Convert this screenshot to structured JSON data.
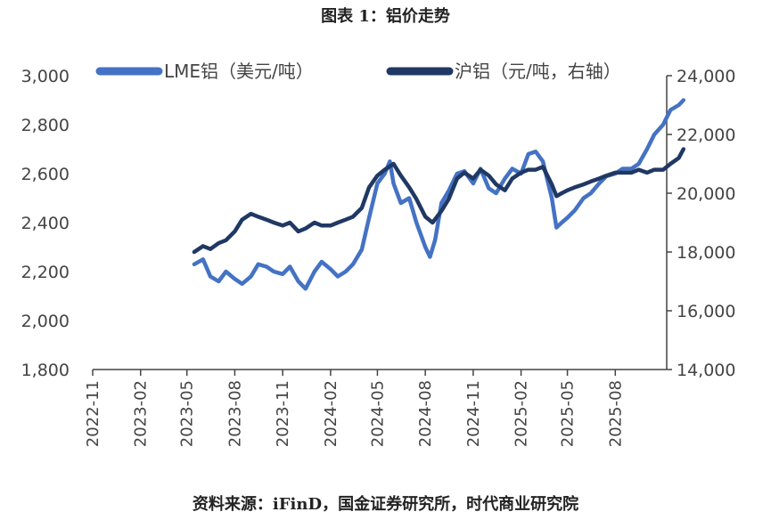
{
  "title": "图表 1：铝价走势",
  "source": "资料来源：iFinD，国金证券研究所，时代商业研究院",
  "colors": {
    "lme": "#4472C4",
    "shfe": "#203864",
    "axis": "#444444"
  },
  "chart_data": {
    "type": "line",
    "x_ticks": [
      "2022-11",
      "2023-02",
      "2023-05",
      "2023-08",
      "2023-11",
      "2024-02",
      "2024-05",
      "2024-08",
      "2024-11",
      "2025-02",
      "2025-05",
      "2025-08"
    ],
    "y_left": {
      "range": [
        1800,
        3000
      ],
      "ticks": [
        "1,800",
        "2,000",
        "2,200",
        "2,400",
        "2,600",
        "2,800",
        "3,000"
      ]
    },
    "y_right": {
      "range": [
        14000,
        24000
      ],
      "ticks": [
        "14,000",
        "16,000",
        "18,000",
        "20,000",
        "22,000",
        "24,000"
      ]
    },
    "legend_position": "top",
    "series": [
      {
        "name": "LME铝（美元/吨）",
        "axis": "left",
        "x": [
          "2023-05-15",
          "2023-06-01",
          "2023-06-15",
          "2023-07-01",
          "2023-07-15",
          "2023-08-01",
          "2023-08-15",
          "2023-09-01",
          "2023-09-15",
          "2023-10-01",
          "2023-10-15",
          "2023-11-01",
          "2023-11-15",
          "2023-12-01",
          "2023-12-15",
          "2024-01-01",
          "2024-01-15",
          "2024-02-01",
          "2024-02-15",
          "2024-03-01",
          "2024-03-15",
          "2024-04-01",
          "2024-04-15",
          "2024-05-01",
          "2024-05-15",
          "2024-05-25",
          "2024-06-01",
          "2024-06-15",
          "2024-07-01",
          "2024-07-15",
          "2024-08-01",
          "2024-08-10",
          "2024-08-20",
          "2024-09-01",
          "2024-09-15",
          "2024-10-01",
          "2024-10-15",
          "2024-11-01",
          "2024-11-15",
          "2024-12-01",
          "2024-12-15",
          "2025-01-01",
          "2025-01-15",
          "2025-02-01",
          "2025-02-15",
          "2025-03-01",
          "2025-03-15",
          "2025-04-01",
          "2025-04-10",
          "2025-04-20",
          "2025-05-01",
          "2025-05-15",
          "2025-06-01",
          "2025-06-15",
          "2025-07-01",
          "2025-07-15",
          "2025-08-01",
          "2025-08-15",
          "2025-09-01",
          "2025-09-15",
          "2025-10-01",
          "2025-10-15",
          "2025-11-01",
          "2025-11-15",
          "2025-12-01",
          "2025-12-10"
        ],
        "values": [
          2230,
          2250,
          2180,
          2160,
          2200,
          2170,
          2150,
          2180,
          2230,
          2220,
          2200,
          2190,
          2220,
          2160,
          2130,
          2200,
          2240,
          2210,
          2180,
          2200,
          2230,
          2290,
          2420,
          2560,
          2600,
          2650,
          2560,
          2480,
          2500,
          2400,
          2300,
          2260,
          2330,
          2480,
          2530,
          2600,
          2610,
          2560,
          2620,
          2540,
          2520,
          2580,
          2620,
          2600,
          2680,
          2690,
          2650,
          2500,
          2380,
          2400,
          2420,
          2450,
          2500,
          2520,
          2560,
          2590,
          2600,
          2620,
          2620,
          2640,
          2700,
          2760,
          2800,
          2860,
          2880,
          2900
        ]
      },
      {
        "name": "沪铝（元/吨，右轴）",
        "axis": "right",
        "x": [
          "2023-05-15",
          "2023-06-01",
          "2023-06-15",
          "2023-07-01",
          "2023-07-15",
          "2023-08-01",
          "2023-08-15",
          "2023-09-01",
          "2023-09-15",
          "2023-10-01",
          "2023-10-15",
          "2023-11-01",
          "2023-11-15",
          "2023-12-01",
          "2023-12-15",
          "2024-01-01",
          "2024-01-15",
          "2024-02-01",
          "2024-02-15",
          "2024-03-01",
          "2024-03-15",
          "2024-04-01",
          "2024-04-15",
          "2024-05-01",
          "2024-05-15",
          "2024-06-01",
          "2024-06-15",
          "2024-07-01",
          "2024-07-15",
          "2024-08-01",
          "2024-08-15",
          "2024-09-01",
          "2024-09-15",
          "2024-10-01",
          "2024-10-15",
          "2024-11-01",
          "2024-11-15",
          "2024-12-01",
          "2024-12-15",
          "2025-01-01",
          "2025-01-15",
          "2025-02-01",
          "2025-02-15",
          "2025-03-01",
          "2025-03-15",
          "2025-04-01",
          "2025-04-10",
          "2025-04-20",
          "2025-05-01",
          "2025-05-15",
          "2025-06-01",
          "2025-06-15",
          "2025-07-01",
          "2025-07-15",
          "2025-08-01",
          "2025-08-15",
          "2025-09-01",
          "2025-09-15",
          "2025-10-01",
          "2025-10-15",
          "2025-11-01",
          "2025-11-15",
          "2025-12-01",
          "2025-12-10"
        ],
        "values": [
          18000,
          18200,
          18100,
          18300,
          18400,
          18700,
          19100,
          19300,
          19200,
          19100,
          19000,
          18900,
          19000,
          18700,
          18800,
          19000,
          18900,
          18900,
          19000,
          19100,
          19200,
          19500,
          20200,
          20600,
          20800,
          21000,
          20600,
          20200,
          19800,
          19200,
          19000,
          19400,
          19800,
          20500,
          20700,
          20500,
          20800,
          20600,
          20300,
          20100,
          20500,
          20700,
          20800,
          20800,
          20900,
          20300,
          19900,
          20000,
          20100,
          20200,
          20300,
          20400,
          20500,
          20600,
          20700,
          20700,
          20700,
          20800,
          20700,
          20800,
          20800,
          21000,
          21200,
          21500
        ]
      }
    ]
  }
}
